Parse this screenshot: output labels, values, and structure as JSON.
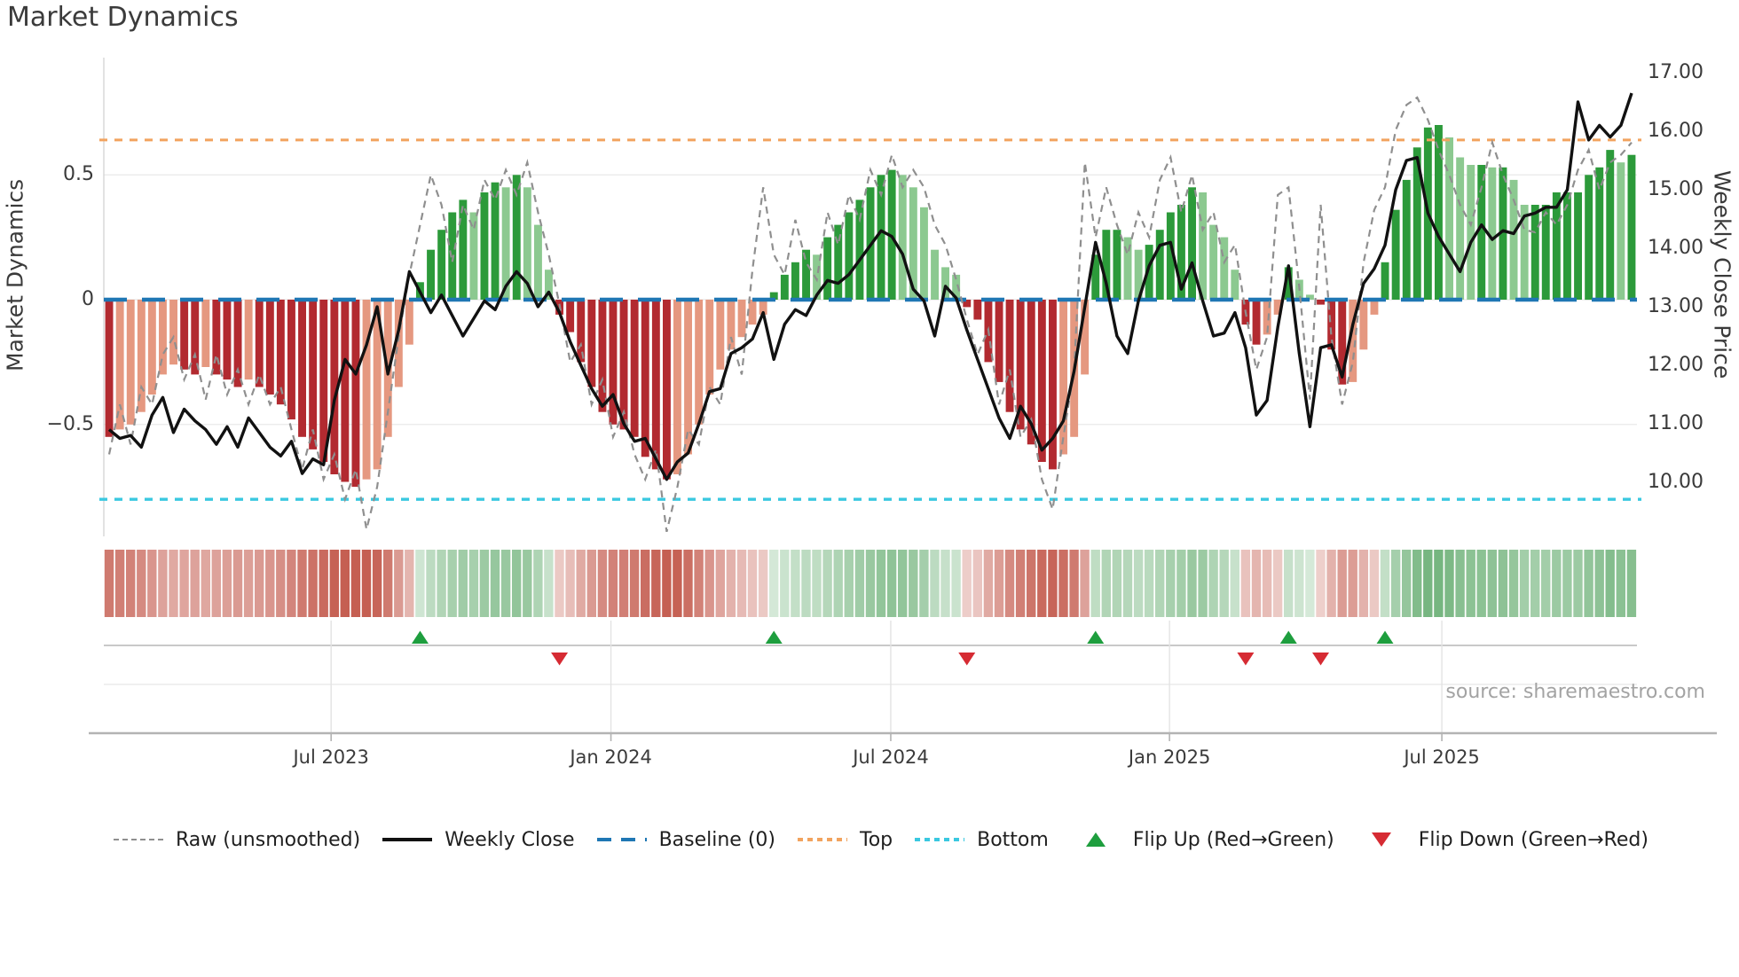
{
  "title": "Market Dynamics",
  "source": "source: sharemaestro.com",
  "legend": [
    {
      "label": "Raw (unsmoothed)",
      "symbol": "gray-dashed-line"
    },
    {
      "label": "Weekly Close",
      "symbol": "black-solid-line"
    },
    {
      "label": "Baseline (0)",
      "symbol": "blue-long-dashes"
    },
    {
      "label": "Top",
      "symbol": "orange-dotted-line"
    },
    {
      "label": "Bottom",
      "symbol": "cyan-dotted-line"
    },
    {
      "label": "Flip Up (Red→Green)",
      "symbol": "green-up-triangle"
    },
    {
      "label": "Flip Down (Green→Red)",
      "symbol": "red-down-triangle"
    }
  ],
  "chart_data": {
    "type": "bar",
    "title": "Market Dynamics",
    "ylabel_left": "Market Dynamics",
    "ylabel_right": "Weekly Close Price",
    "x_tick_labels": [
      "Jul 2023",
      "Jan 2024",
      "Jul 2024",
      "Jan 2025",
      "Jul 2025"
    ],
    "x_tick_weeks": [
      21.2,
      47.3,
      73.4,
      99.4,
      124.8
    ],
    "ylim_left": [
      -0.95,
      0.97
    ],
    "yticks_left": [
      0.5,
      0,
      -0.5
    ],
    "ytick_labels_left": [
      "0.5",
      "0",
      "−0.5"
    ],
    "yticks_right": [
      17,
      16,
      15,
      14,
      13,
      12,
      11,
      10
    ],
    "ytick_labels_right": [
      "17.00",
      "16.00",
      "15.00",
      "14.00",
      "13.00",
      "12.00",
      "11.00",
      "10.00"
    ],
    "baseline": 0,
    "top_level": 0.64,
    "bottom_level": -0.8,
    "n_weeks": 143,
    "smoothed": [
      -0.55,
      -0.52,
      -0.5,
      -0.45,
      -0.38,
      -0.3,
      -0.26,
      -0.28,
      -0.3,
      -0.27,
      -0.3,
      -0.32,
      -0.35,
      -0.32,
      -0.35,
      -0.38,
      -0.42,
      -0.48,
      -0.55,
      -0.6,
      -0.65,
      -0.7,
      -0.73,
      -0.75,
      -0.72,
      -0.68,
      -0.55,
      -0.35,
      -0.18,
      0.07,
      0.2,
      0.28,
      0.35,
      0.4,
      0.35,
      0.43,
      0.47,
      0.45,
      0.5,
      0.45,
      0.3,
      0.12,
      -0.06,
      -0.13,
      -0.25,
      -0.35,
      -0.45,
      -0.5,
      -0.52,
      -0.55,
      -0.63,
      -0.68,
      -0.72,
      -0.7,
      -0.62,
      -0.5,
      -0.38,
      -0.28,
      -0.2,
      -0.15,
      -0.1,
      -0.06,
      0.03,
      0.1,
      0.15,
      0.2,
      0.18,
      0.25,
      0.3,
      0.35,
      0.4,
      0.45,
      0.5,
      0.52,
      0.5,
      0.45,
      0.37,
      0.2,
      0.13,
      0.1,
      -0.03,
      -0.08,
      -0.25,
      -0.33,
      -0.45,
      -0.52,
      -0.58,
      -0.65,
      -0.68,
      -0.62,
      -0.55,
      -0.3,
      0.18,
      0.28,
      0.28,
      0.25,
      0.2,
      0.22,
      0.28,
      0.35,
      0.38,
      0.45,
      0.43,
      0.3,
      0.25,
      0.12,
      -0.1,
      -0.18,
      -0.14,
      -0.06,
      0.13,
      0.08,
      0.02,
      -0.02,
      -0.2,
      -0.34,
      -0.33,
      -0.2,
      -0.06,
      0.15,
      0.36,
      0.48,
      0.61,
      0.69,
      0.7,
      0.65,
      0.57,
      0.54,
      0.54,
      0.53,
      0.53,
      0.48,
      0.38,
      0.38,
      0.38,
      0.43,
      0.43,
      0.43,
      0.5,
      0.53,
      0.6,
      0.55,
      0.58
    ],
    "raw": [
      -0.62,
      -0.42,
      -0.58,
      -0.35,
      -0.42,
      -0.22,
      -0.15,
      -0.32,
      -0.22,
      -0.4,
      -0.22,
      -0.38,
      -0.28,
      -0.42,
      -0.3,
      -0.42,
      -0.35,
      -0.52,
      -0.68,
      -0.52,
      -0.72,
      -0.62,
      -0.8,
      -0.68,
      -0.92,
      -0.75,
      -0.45,
      -0.15,
      0.1,
      0.3,
      0.5,
      0.38,
      0.15,
      0.38,
      0.28,
      0.48,
      0.4,
      0.52,
      0.42,
      0.55,
      0.35,
      0.18,
      -0.02,
      -0.25,
      -0.18,
      -0.42,
      -0.32,
      -0.55,
      -0.45,
      -0.62,
      -0.72,
      -0.6,
      -0.93,
      -0.75,
      -0.52,
      -0.58,
      -0.35,
      -0.42,
      -0.15,
      -0.3,
      0.12,
      0.45,
      0.18,
      0.1,
      0.32,
      0.15,
      0.08,
      0.35,
      0.22,
      0.42,
      0.32,
      0.52,
      0.42,
      0.58,
      0.45,
      0.52,
      0.45,
      0.3,
      0.22,
      0.08,
      -0.08,
      -0.22,
      -0.12,
      -0.42,
      -0.28,
      -0.55,
      -0.48,
      -0.72,
      -0.84,
      -0.55,
      -0.28,
      0.55,
      0.25,
      0.45,
      0.3,
      0.18,
      0.35,
      0.25,
      0.48,
      0.57,
      0.35,
      0.5,
      0.28,
      0.35,
      0.15,
      0.22,
      -0.05,
      -0.28,
      -0.15,
      0.42,
      0.45,
      0.05,
      -0.4,
      0.38,
      -0.15,
      -0.42,
      -0.25,
      0.15,
      0.36,
      0.45,
      0.68,
      0.78,
      0.81,
      0.72,
      0.6,
      0.5,
      0.38,
      0.3,
      0.45,
      0.63,
      0.5,
      0.4,
      0.28,
      0.27,
      0.35,
      0.3,
      0.38,
      0.52,
      0.6,
      0.44,
      0.55,
      0.58,
      0.63
    ],
    "weekly_close": [
      10.9,
      10.75,
      10.8,
      10.6,
      11.15,
      11.45,
      10.85,
      11.25,
      11.05,
      10.9,
      10.65,
      10.95,
      10.6,
      11.1,
      10.85,
      10.6,
      10.45,
      10.7,
      10.15,
      10.4,
      10.3,
      11.4,
      12.1,
      11.85,
      12.35,
      13.0,
      11.85,
      12.6,
      13.6,
      13.25,
      12.9,
      13.2,
      12.85,
      12.5,
      12.8,
      13.1,
      12.95,
      13.35,
      13.6,
      13.4,
      13.0,
      13.25,
      12.9,
      12.4,
      12.0,
      11.6,
      11.3,
      11.5,
      11.0,
      10.7,
      10.75,
      10.4,
      10.05,
      10.35,
      10.5,
      11.0,
      11.55,
      11.6,
      12.2,
      12.3,
      12.45,
      12.9,
      12.1,
      12.7,
      12.95,
      12.85,
      13.2,
      13.45,
      13.4,
      13.55,
      13.8,
      14.05,
      14.3,
      14.2,
      13.9,
      13.3,
      13.1,
      12.5,
      13.35,
      13.15,
      12.6,
      12.1,
      11.6,
      11.1,
      10.75,
      11.3,
      11.0,
      10.55,
      10.75,
      11.05,
      11.9,
      13.0,
      14.1,
      13.4,
      12.5,
      12.2,
      13.1,
      13.7,
      14.05,
      14.1,
      13.3,
      13.75,
      13.1,
      12.5,
      12.55,
      12.9,
      12.3,
      11.15,
      11.4,
      12.65,
      13.7,
      12.2,
      10.95,
      12.3,
      12.35,
      11.8,
      12.7,
      13.4,
      13.65,
      14.05,
      15.0,
      15.5,
      15.55,
      14.6,
      14.2,
      13.9,
      13.6,
      14.1,
      14.4,
      14.15,
      14.3,
      14.25,
      14.55,
      14.6,
      14.7,
      14.7,
      15.0,
      16.5,
      15.85,
      16.1,
      15.9,
      16.1,
      16.65
    ],
    "flip_up_weeks": [
      29,
      62,
      92,
      110,
      119
    ],
    "flip_down_weeks": [
      42,
      80,
      106,
      113
    ],
    "colors": {
      "bar_dark_red": "#b22a30",
      "bar_light_red": "#e59880",
      "bar_dark_green": "#2c9a3a",
      "bar_light_green": "#8cc990",
      "baseline": "#1f77b4",
      "top_line": "#f2a35e",
      "bottom_line": "#3ac8e0",
      "raw_line": "#8f8f8f",
      "close_line": "#111111",
      "flip_up": "#1e9e3e",
      "flip_down": "#d62b33",
      "grid": "#ececec",
      "spine": "#b3b3b3",
      "heat_red": [
        197,
        95,
        82
      ],
      "heat_green": [
        115,
        180,
        125
      ]
    }
  }
}
